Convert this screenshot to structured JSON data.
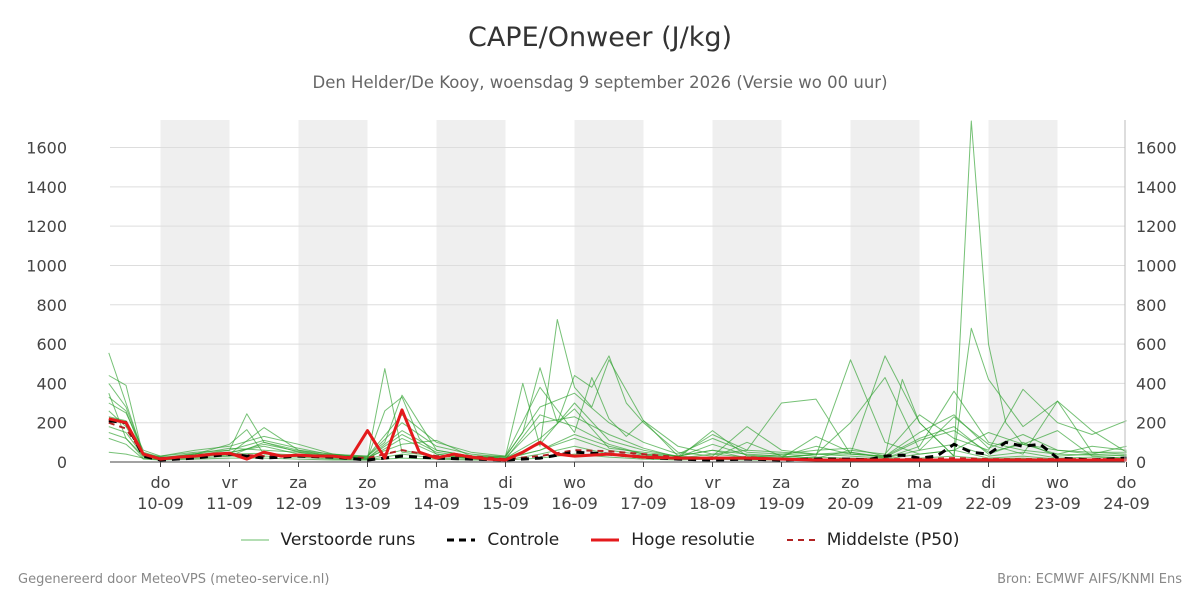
{
  "header": {
    "title": "CAPE/Onweer (J/kg)",
    "subtitle": "Den Helder/De Kooy, woensdag  9 september 2026 (Versie wo 00 uur)"
  },
  "footer": {
    "left": "Gegenereerd door MeteoVPS (meteo-service.nl)",
    "right": "Bron: ECMWF AIFS/KNMI Ens"
  },
  "colors": {
    "ensemble": "#2ca02c",
    "control": "#000000",
    "hires": "#e41a1c",
    "median": "#b22222",
    "night_band": "#efefef",
    "grid": "#dddddd"
  },
  "chart_data": {
    "type": "line",
    "title": "CAPE/Onweer (J/kg)",
    "ylim": [
      0,
      1740
    ],
    "xlim": [
      -0.75,
      14
    ],
    "yticks": [
      0,
      200,
      400,
      600,
      800,
      1000,
      1200,
      1400,
      1600
    ],
    "xticks": [
      {
        "day": "do",
        "date": "10-09"
      },
      {
        "day": "vr",
        "date": "11-09"
      },
      {
        "day": "za",
        "date": "12-09"
      },
      {
        "day": "zo",
        "date": "13-09"
      },
      {
        "day": "ma",
        "date": "14-09"
      },
      {
        "day": "di",
        "date": "15-09"
      },
      {
        "day": "wo",
        "date": "16-09"
      },
      {
        "day": "do",
        "date": "17-09"
      },
      {
        "day": "vr",
        "date": "18-09"
      },
      {
        "day": "za",
        "date": "19-09"
      },
      {
        "day": "zo",
        "date": "20-09"
      },
      {
        "day": "ma",
        "date": "21-09"
      },
      {
        "day": "di",
        "date": "22-09"
      },
      {
        "day": "wo",
        "date": "23-09"
      },
      {
        "day": "do",
        "date": "24-09"
      }
    ],
    "shaded_bands": [
      [
        0,
        1
      ],
      [
        2,
        3
      ],
      [
        4,
        5
      ],
      [
        6,
        7
      ],
      [
        8,
        9
      ],
      [
        10,
        11
      ],
      [
        12,
        13
      ]
    ],
    "grid": true,
    "legend_position": "bottom",
    "legend": [
      {
        "key": "ensemble",
        "label": "Verstoorde runs"
      },
      {
        "key": "control",
        "label": "Controle"
      },
      {
        "key": "hires",
        "label": "Hoge resolutie"
      },
      {
        "key": "median",
        "label": "Middelste (P50)"
      }
    ],
    "control": {
      "x": [
        -0.75,
        -0.5,
        -0.25,
        0,
        0.5,
        1,
        1.5,
        2,
        2.5,
        3,
        3.5,
        4,
        4.5,
        5,
        5.5,
        6,
        6.5,
        7,
        7.5,
        8,
        8.5,
        9,
        9.5,
        10,
        10.25,
        10.5,
        10.75,
        11,
        11.25,
        11.5,
        11.75,
        12,
        12.25,
        12.5,
        12.75,
        13,
        13.5,
        14
      ],
      "y": [
        210,
        200,
        30,
        10,
        20,
        40,
        20,
        30,
        25,
        10,
        30,
        20,
        15,
        10,
        20,
        50,
        40,
        25,
        15,
        10,
        15,
        10,
        15,
        15,
        10,
        30,
        35,
        20,
        30,
        90,
        50,
        40,
        100,
        80,
        90,
        20,
        10,
        20
      ]
    },
    "hires": {
      "x": [
        -0.75,
        -0.5,
        -0.25,
        0,
        0.25,
        0.5,
        0.75,
        1,
        1.25,
        1.5,
        1.75,
        2,
        2.25,
        2.5,
        2.75,
        3,
        3.25,
        3.5,
        3.75,
        4,
        4.25,
        4.5,
        4.75,
        5,
        5.25,
        5.5,
        5.75,
        6,
        6.5,
        7,
        7.5,
        8,
        8.5,
        9,
        9.5,
        10,
        11,
        12,
        13,
        14
      ],
      "y": [
        220,
        200,
        40,
        15,
        25,
        30,
        40,
        45,
        15,
        50,
        30,
        35,
        30,
        30,
        20,
        160,
        20,
        265,
        50,
        20,
        40,
        25,
        15,
        10,
        50,
        100,
        40,
        30,
        40,
        25,
        20,
        20,
        20,
        15,
        10,
        10,
        10,
        10,
        10,
        10
      ]
    },
    "median": {
      "x": [
        -0.75,
        -0.5,
        -0.25,
        0,
        0.5,
        1,
        1.5,
        2,
        2.5,
        3,
        3.5,
        4,
        4.5,
        5,
        5.5,
        6,
        6.5,
        7,
        7.5,
        8,
        8.5,
        9,
        9.5,
        10,
        10.5,
        11,
        11.5,
        12,
        12.5,
        13,
        13.5,
        14
      ],
      "y": [
        200,
        170,
        40,
        20,
        30,
        40,
        30,
        35,
        30,
        20,
        60,
        30,
        30,
        15,
        30,
        60,
        55,
        40,
        25,
        15,
        25,
        15,
        15,
        15,
        15,
        15,
        20,
        15,
        15,
        15,
        15,
        15
      ]
    },
    "ensemble_members": [
      {
        "x": [
          -0.75,
          -0.5,
          -0.25,
          0,
          0.5,
          1,
          1.25,
          1.5,
          2,
          2.5,
          3,
          3.25,
          3.5,
          4,
          4.5,
          5,
          5.5,
          6,
          6.5,
          7,
          7.5,
          8,
          8.5,
          9,
          9.5,
          10,
          10.5,
          11,
          11.5,
          12,
          12.5,
          13,
          13.5,
          14
        ],
        "y": [
          555,
          300,
          40,
          20,
          40,
          90,
          165,
          40,
          30,
          40,
          20,
          475,
          50,
          30,
          20,
          20,
          60,
          140,
          80,
          40,
          30,
          60,
          20,
          40,
          30,
          520,
          100,
          40,
          60,
          150,
          90,
          60,
          40,
          80
        ]
      },
      {
        "x": [
          -0.75,
          -0.5,
          -0.25,
          0,
          0.5,
          1,
          1.25,
          1.5,
          2,
          2.5,
          3,
          3.25,
          3.5,
          4,
          4.5,
          5,
          5.25,
          5.5,
          5.75,
          6,
          6.25,
          6.5,
          7,
          7.5,
          8,
          8.5,
          9,
          9.5,
          10,
          10.5,
          10.75,
          11,
          11.5,
          11.75,
          12,
          12.5,
          13,
          13.5,
          14
        ],
        "y": [
          440,
          390,
          30,
          30,
          50,
          60,
          245,
          100,
          50,
          20,
          30,
          100,
          340,
          60,
          30,
          30,
          400,
          80,
          725,
          380,
          280,
          520,
          210,
          30,
          140,
          60,
          300,
          320,
          40,
          30,
          420,
          200,
          30,
          680,
          420,
          180,
          310,
          50,
          40
        ]
      },
      {
        "x": [
          -0.75,
          -0.5,
          -0.25,
          0,
          0.5,
          1,
          1.5,
          2,
          2.5,
          3,
          3.25,
          3.5,
          3.75,
          4,
          4.5,
          5,
          5.25,
          5.5,
          5.75,
          6,
          6.25,
          6.5,
          6.75,
          7,
          7.5,
          8,
          8.5,
          9,
          9.5,
          10,
          10.5,
          11,
          11.5,
          11.75,
          12,
          12.25,
          12.5,
          13,
          13.5,
          14
        ],
        "y": [
          350,
          120,
          30,
          20,
          30,
          40,
          175,
          60,
          30,
          20,
          260,
          330,
          120,
          40,
          20,
          30,
          150,
          480,
          200,
          440,
          380,
          540,
          300,
          200,
          50,
          30,
          180,
          60,
          40,
          40,
          540,
          200,
          30,
          1735,
          600,
          200,
          90,
          160,
          30,
          20
        ]
      },
      {
        "x": [
          -0.75,
          -0.5,
          -0.25,
          0,
          0.5,
          1,
          1.5,
          2,
          2.5,
          3,
          3.5,
          4,
          4.5,
          5,
          5.5,
          6,
          6.25,
          6.5,
          6.75,
          7,
          7.5,
          8,
          8.5,
          9,
          9.5,
          10,
          10.5,
          11,
          11.5,
          12,
          12.5,
          13,
          13.5,
          14
        ],
        "y": [
          300,
          250,
          60,
          30,
          60,
          80,
          130,
          90,
          40,
          30,
          240,
          100,
          50,
          30,
          380,
          150,
          430,
          220,
          130,
          210,
          80,
          40,
          60,
          50,
          40,
          200,
          430,
          60,
          230,
          90,
          40,
          310,
          160,
          50
        ]
      },
      {
        "x": [
          -0.75,
          -0.5,
          -0.25,
          0,
          0.5,
          1,
          1.5,
          2,
          2.5,
          3,
          3.5,
          4,
          4.5,
          5,
          5.5,
          6,
          6.5,
          7,
          7.5,
          8,
          8.5,
          9,
          9.5,
          10,
          10.5,
          11,
          11.5,
          12,
          12.5,
          13,
          13.5,
          14
        ],
        "y": [
          260,
          180,
          35,
          20,
          45,
          30,
          100,
          60,
          40,
          20,
          160,
          60,
          30,
          20,
          90,
          300,
          110,
          60,
          30,
          20,
          100,
          30,
          20,
          60,
          40,
          240,
          120,
          60,
          370,
          200,
          140,
          210
        ]
      },
      {
        "x": [
          -0.75,
          -0.5,
          -0.25,
          0,
          0.5,
          1,
          1.5,
          2,
          2.5,
          3,
          3.5,
          4,
          4.5,
          5,
          5.5,
          6,
          6.5,
          7,
          7.5,
          8,
          8.5,
          9,
          9.5,
          10,
          10.5,
          11,
          11.5,
          12,
          12.5,
          13,
          13.5,
          14
        ],
        "y": [
          230,
          210,
          50,
          25,
          30,
          50,
          80,
          40,
          30,
          15,
          120,
          40,
          20,
          15,
          240,
          180,
          90,
          40,
          20,
          160,
          30,
          20,
          130,
          50,
          20,
          80,
          360,
          100,
          60,
          40,
          80,
          60
        ]
      },
      {
        "x": [
          -0.75,
          -0.5,
          -0.25,
          0,
          0.5,
          1,
          1.5,
          2,
          2.5,
          3,
          3.5,
          4,
          4.5,
          5,
          5.5,
          6,
          6.5,
          7,
          7.5,
          8,
          8.5,
          9,
          9.5,
          10,
          10.5,
          11,
          11.5,
          12,
          12.5,
          13,
          13.5,
          14
        ],
        "y": [
          180,
          150,
          30,
          20,
          40,
          70,
          60,
          50,
          30,
          25,
          90,
          110,
          30,
          20,
          120,
          270,
          70,
          50,
          30,
          60,
          40,
          30,
          80,
          40,
          30,
          120,
          180,
          40,
          100,
          30,
          40,
          30
        ]
      },
      {
        "x": [
          -0.75,
          -0.5,
          -0.25,
          0,
          0.5,
          1,
          1.5,
          2,
          2.5,
          3,
          3.5,
          4,
          4.5,
          5,
          5.5,
          6,
          6.5,
          7,
          7.5,
          8,
          8.5,
          9,
          9.5,
          10,
          10.5,
          11,
          11.5,
          12,
          12.5,
          13,
          13.5,
          14
        ],
        "y": [
          150,
          120,
          20,
          15,
          25,
          40,
          45,
          35,
          20,
          15,
          60,
          30,
          20,
          15,
          60,
          120,
          60,
          35,
          20,
          40,
          25,
          20,
          40,
          30,
          20,
          60,
          90,
          30,
          50,
          20,
          25,
          20
        ]
      },
      {
        "x": [
          -0.75,
          -0.5,
          -0.25,
          0,
          0.5,
          1,
          1.5,
          2,
          2.5,
          3,
          3.5,
          4,
          4.5,
          5,
          5.5,
          6,
          6.5,
          7,
          7.5,
          8,
          8.5,
          9,
          9.5,
          10,
          10.5,
          11,
          11.5,
          12,
          12.5,
          13,
          13.5,
          14
        ],
        "y": [
          120,
          90,
          15,
          10,
          20,
          30,
          30,
          25,
          15,
          10,
          40,
          20,
          15,
          10,
          40,
          80,
          40,
          25,
          15,
          25,
          15,
          15,
          25,
          20,
          15,
          40,
          60,
          20,
          30,
          15,
          15,
          15
        ]
      },
      {
        "x": [
          -0.75,
          -0.5,
          -0.25,
          0,
          0.5,
          1,
          1.5,
          2,
          2.5,
          3,
          3.5,
          4,
          4.5,
          5,
          5.5,
          6,
          6.5,
          7,
          7.5,
          8,
          8.5,
          9,
          9.5,
          10,
          10.5,
          11,
          11.5,
          12,
          12.5,
          13,
          13.5,
          14
        ],
        "y": [
          400,
          280,
          45,
          25,
          35,
          60,
          110,
          70,
          35,
          30,
          200,
          80,
          40,
          25,
          280,
          350,
          200,
          100,
          40,
          120,
          50,
          40,
          60,
          70,
          30,
          150,
          240,
          70,
          140,
          60,
          50,
          50
        ]
      },
      {
        "x": [
          -0.75,
          -0.5,
          -0.25,
          0,
          0.5,
          1,
          1.5,
          2,
          2.5,
          3,
          3.5,
          4,
          4.5,
          5,
          5.5,
          6,
          6.5,
          7,
          7.5,
          8,
          8.5,
          9,
          9.5,
          10,
          10.5,
          11,
          11.5,
          12,
          12.5,
          13,
          13.5,
          14
        ],
        "y": [
          330,
          260,
          35,
          20,
          30,
          45,
          90,
          55,
          30,
          20,
          140,
          50,
          25,
          20,
          200,
          230,
          140,
          70,
          25,
          90,
          35,
          25,
          40,
          50,
          25,
          110,
          160,
          50,
          90,
          40,
          35,
          35
        ]
      },
      {
        "x": [
          -0.75,
          -0.5,
          -0.25,
          0,
          0.5,
          1,
          1.5,
          2,
          2.5,
          3,
          3.5,
          4,
          4.5,
          5,
          5.5,
          6,
          6.5,
          7,
          7.5,
          8,
          8.5,
          9,
          9.5,
          10,
          10.5,
          11,
          11.5,
          12,
          12.5,
          13,
          13.5,
          14
        ],
        "y": [
          50,
          40,
          20,
          10,
          15,
          20,
          20,
          15,
          10,
          10,
          20,
          15,
          10,
          10,
          20,
          40,
          25,
          15,
          10,
          15,
          10,
          10,
          15,
          15,
          10,
          20,
          30,
          15,
          20,
          10,
          10,
          10
        ]
      }
    ]
  }
}
